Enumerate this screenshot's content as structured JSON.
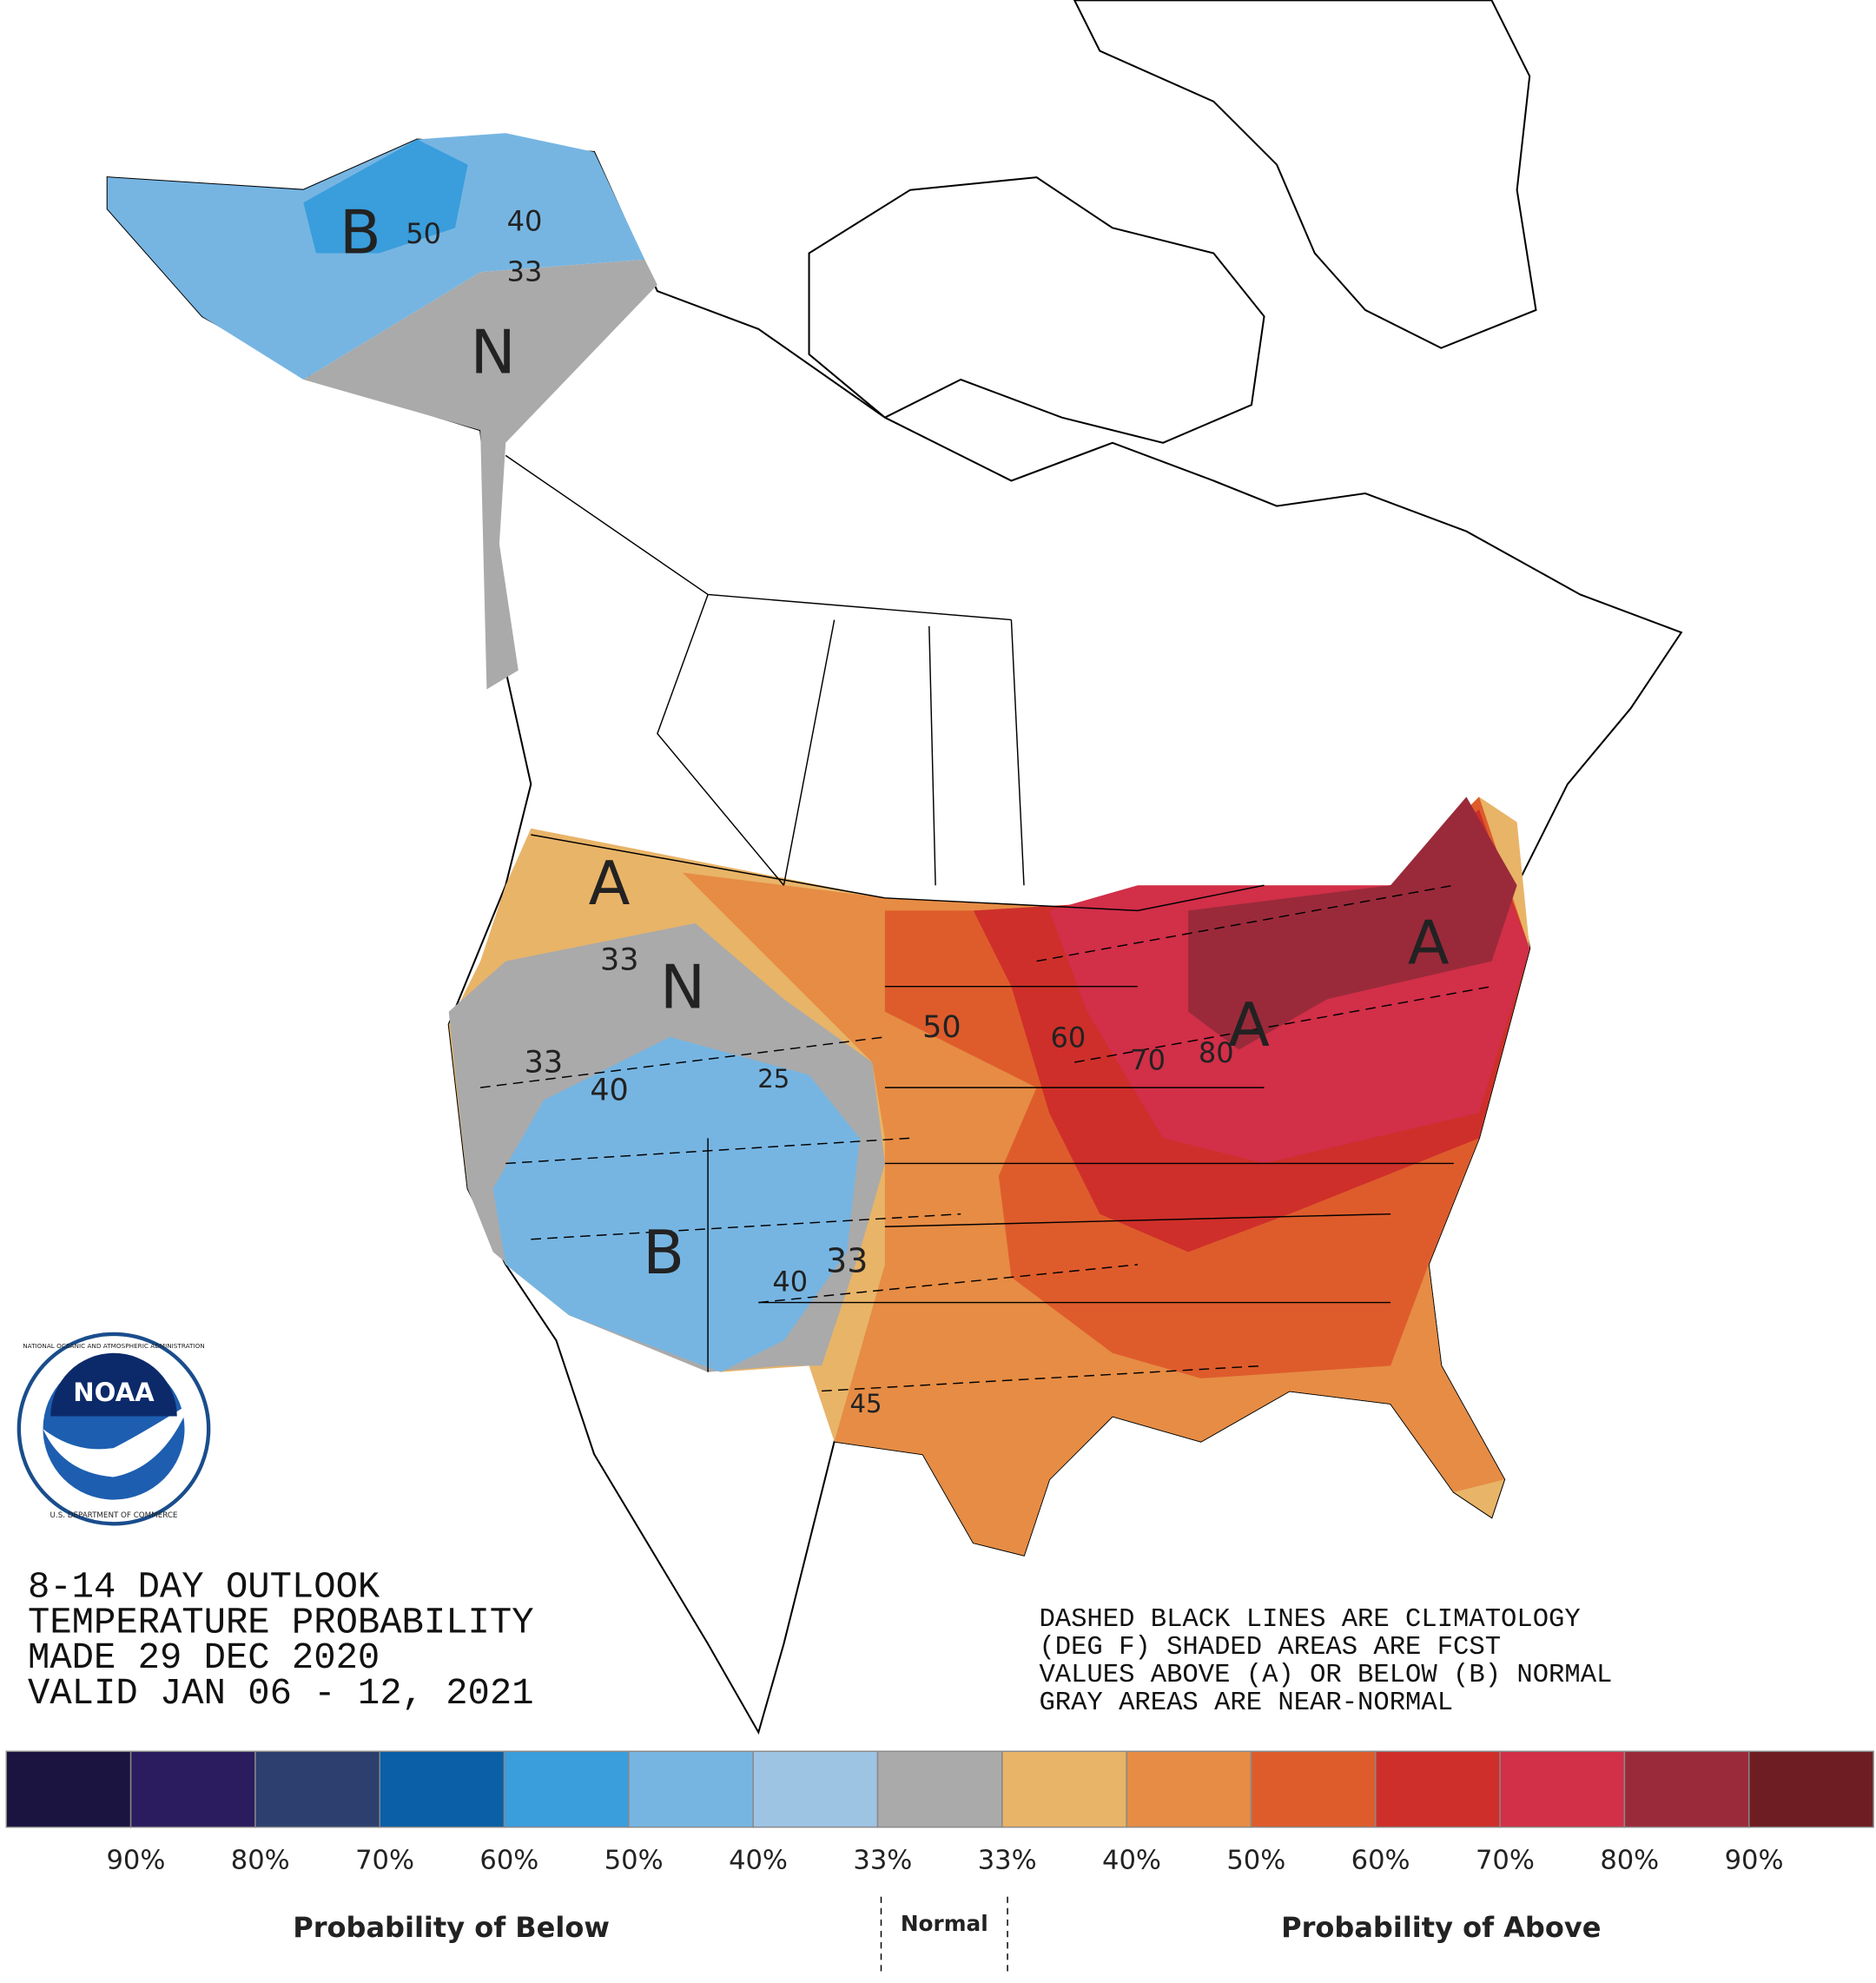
{
  "outlook": {
    "lines": [
      "8-14 DAY OUTLOOK",
      "TEMPERATURE PROBABILITY",
      "MADE  29 DEC 2020",
      "VALID  JAN 06 - 12, 2021"
    ]
  },
  "note": {
    "lines": [
      "DASHED BLACK LINES ARE CLIMATOLOGY",
      "(DEG F) SHADED AREAS ARE FCST",
      "VALUES ABOVE (A) OR BELOW (B) NORMAL",
      "GRAY AREAS ARE NEAR-NORMAL"
    ]
  },
  "logo": {
    "name": "NOAA",
    "ring_top": "NATIONAL OCEANIC AND ATMOSPHERIC ADMINISTRATION",
    "ring_bottom": "U.S. DEPARTMENT OF COMMERCE"
  },
  "map_labels": [
    "B",
    "N",
    "A",
    "N",
    "B",
    "A",
    "A",
    "50",
    "40",
    "33",
    "33",
    "33",
    "40",
    "50",
    "60",
    "70",
    "80",
    "45",
    "40",
    "33",
    "25"
  ],
  "legend": {
    "colors": [
      "#1c1440",
      "#2a1c5e",
      "#2c3f6e",
      "#0b5fa6",
      "#3a9ddc",
      "#76b5e2",
      "#9ec4e4",
      "#aaaaaa",
      "#e8b468",
      "#e68c45",
      "#de5c2c",
      "#ce2f2a",
      "#d22f48",
      "#9a2a3a",
      "#6e1e22"
    ],
    "labels": [
      "90%",
      "80%",
      "70%",
      "60%",
      "50%",
      "40%",
      "33%",
      "33%",
      "40%",
      "50%",
      "60%",
      "70%",
      "80%",
      "90%"
    ],
    "below": "Probability of Below",
    "normal": "Normal",
    "above": "Probability of Above"
  }
}
